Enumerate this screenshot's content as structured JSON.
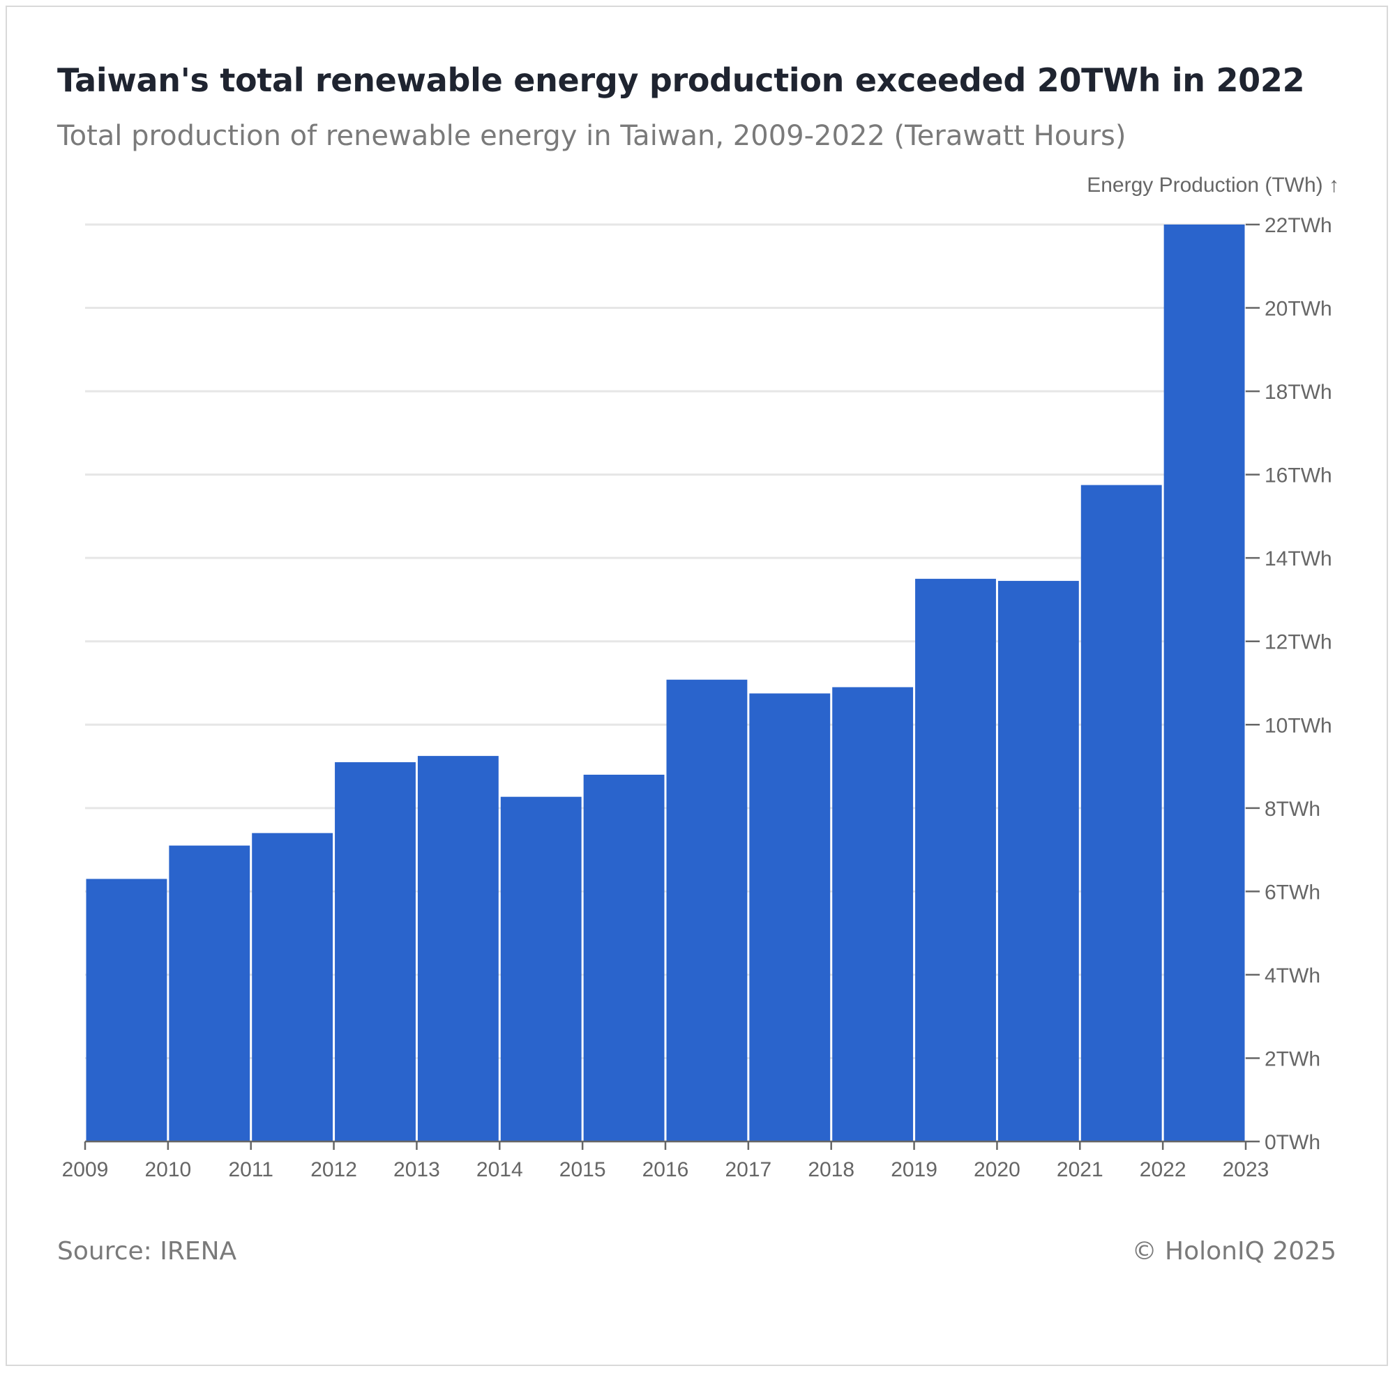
{
  "header": {
    "title": "Taiwan's total renewable energy production exceeded 20TWh in 2022",
    "subtitle": "Total production of renewable energy in Taiwan, 2009-2022 (Terawatt Hours)"
  },
  "footer": {
    "source": "Source: IRENA",
    "copyright": "© HolonIQ 2025"
  },
  "colors": {
    "bar": "#2a64cc",
    "grid": "#e6e6e6",
    "axis": "#666666"
  },
  "chart_data": {
    "type": "bar",
    "title": "Taiwan's total renewable energy production exceeded 20TWh in 2022",
    "subtitle": "Total production of renewable energy in Taiwan, 2009-2022 (Terawatt Hours)",
    "ylabel": "Energy Production (TWh) ↑",
    "xlabel": "",
    "categories": [
      "2009",
      "2010",
      "2011",
      "2012",
      "2013",
      "2014",
      "2015",
      "2016",
      "2017",
      "2018",
      "2019",
      "2020",
      "2021",
      "2022"
    ],
    "values": [
      6.3,
      7.1,
      7.4,
      9.1,
      9.25,
      8.27,
      8.8,
      11.08,
      10.75,
      10.9,
      13.5,
      13.45,
      15.75,
      22.0
    ],
    "x_ticks": [
      "2009",
      "2010",
      "2011",
      "2012",
      "2013",
      "2014",
      "2015",
      "2016",
      "2017",
      "2018",
      "2019",
      "2020",
      "2021",
      "2022",
      "2023"
    ],
    "y_ticks": [
      "0TWh",
      "2TWh",
      "4TWh",
      "6TWh",
      "8TWh",
      "10TWh",
      "12TWh",
      "14TWh",
      "16TWh",
      "18TWh",
      "20TWh",
      "22TWh"
    ],
    "ylim": [
      0,
      22
    ],
    "y_axis_side": "right",
    "grid": true,
    "legend": "none"
  }
}
